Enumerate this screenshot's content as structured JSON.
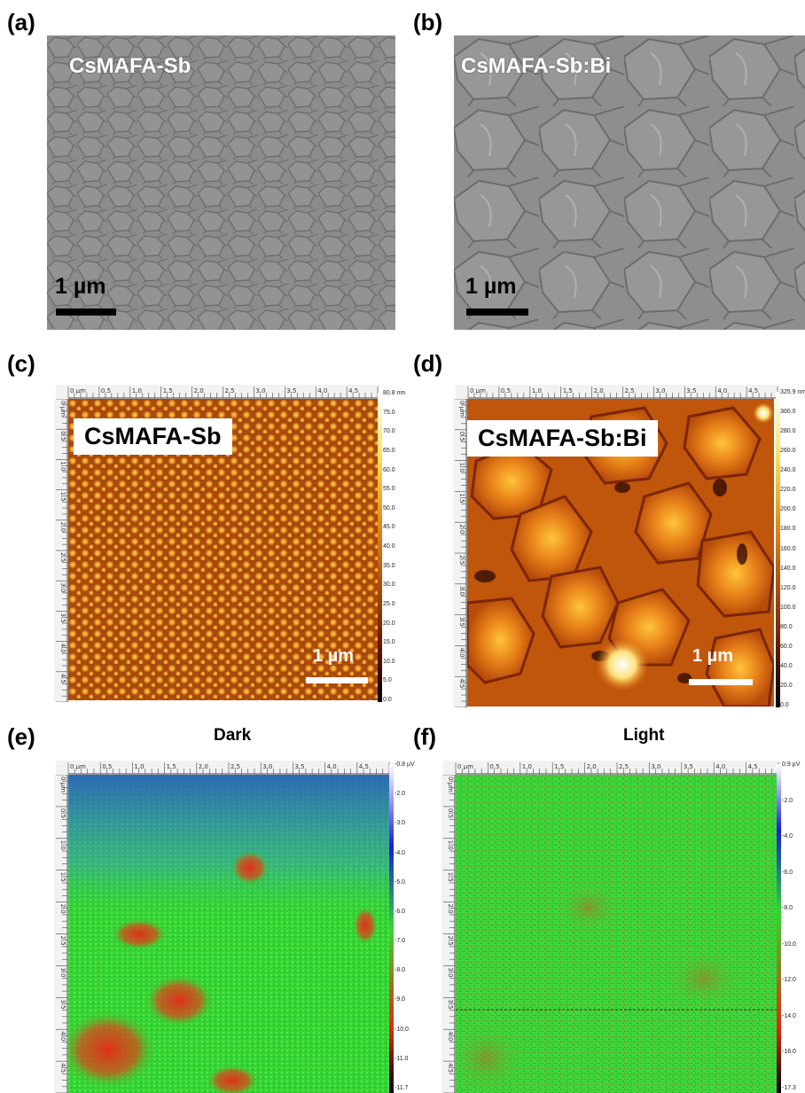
{
  "panels": {
    "a": {
      "letter": "(a)",
      "label": "CsMAFA-Sb",
      "scale": "1 µm"
    },
    "b": {
      "letter": "(b)",
      "label": "CsMAFA-Sb:Bi",
      "scale": "1 µm"
    },
    "c": {
      "letter": "(c)",
      "label": "CsMAFA-Sb",
      "scale": "1 µm",
      "colorbar": [
        "80.8 nm",
        "75.0",
        "70.0",
        "65.0",
        "60.0",
        "55.0",
        "50.0",
        "45.0",
        "40.0",
        "35.0",
        "30.0",
        "25.0",
        "20.0",
        "15.0",
        "10.0",
        "5.0",
        "0.0"
      ]
    },
    "d": {
      "letter": "(d)",
      "label": "CsMAFA-Sb:Bi",
      "scale": "1 µm",
      "colorbar": [
        "325.9 nm",
        "300.0",
        "280.0",
        "260.0",
        "240.0",
        "220.0",
        "200.0",
        "180.0",
        "160.0",
        "140.0",
        "120.0",
        "100.0",
        "80.0",
        "60.0",
        "40.0",
        "20.0",
        "0.0"
      ]
    },
    "e": {
      "letter": "(e)",
      "title": "Dark",
      "colorbar": [
        "-0.8 µV",
        "-2.0",
        "-3.0",
        "-4.0",
        "-5.0",
        "-6.0",
        "-7.0",
        "-8.0",
        "-9.0",
        "-10.0",
        "-11.0",
        "-11.7"
      ]
    },
    "f": {
      "letter": "(f)",
      "title": "Light",
      "colorbar": [
        "0.9 µV",
        "-2.0",
        "-4.0",
        "-6.0",
        "-8.0",
        "-10.0",
        "-12.0",
        "-14.0",
        "-16.0",
        "-17.3"
      ]
    }
  },
  "ruler_labels": [
    "0 µm",
    "0.5",
    "1.0",
    "1.5",
    "2.0",
    "2.5",
    "3.0",
    "3.5",
    "4.0",
    "4.5"
  ],
  "colors": {
    "sem_gray": "#8a8a8a",
    "afm_c": "#b8520e",
    "afm_d": "#c0550c",
    "kpfm_green": "#33d633",
    "kpfm_blue": "#2a55c8",
    "kpfm_red": "#d23a1c"
  }
}
